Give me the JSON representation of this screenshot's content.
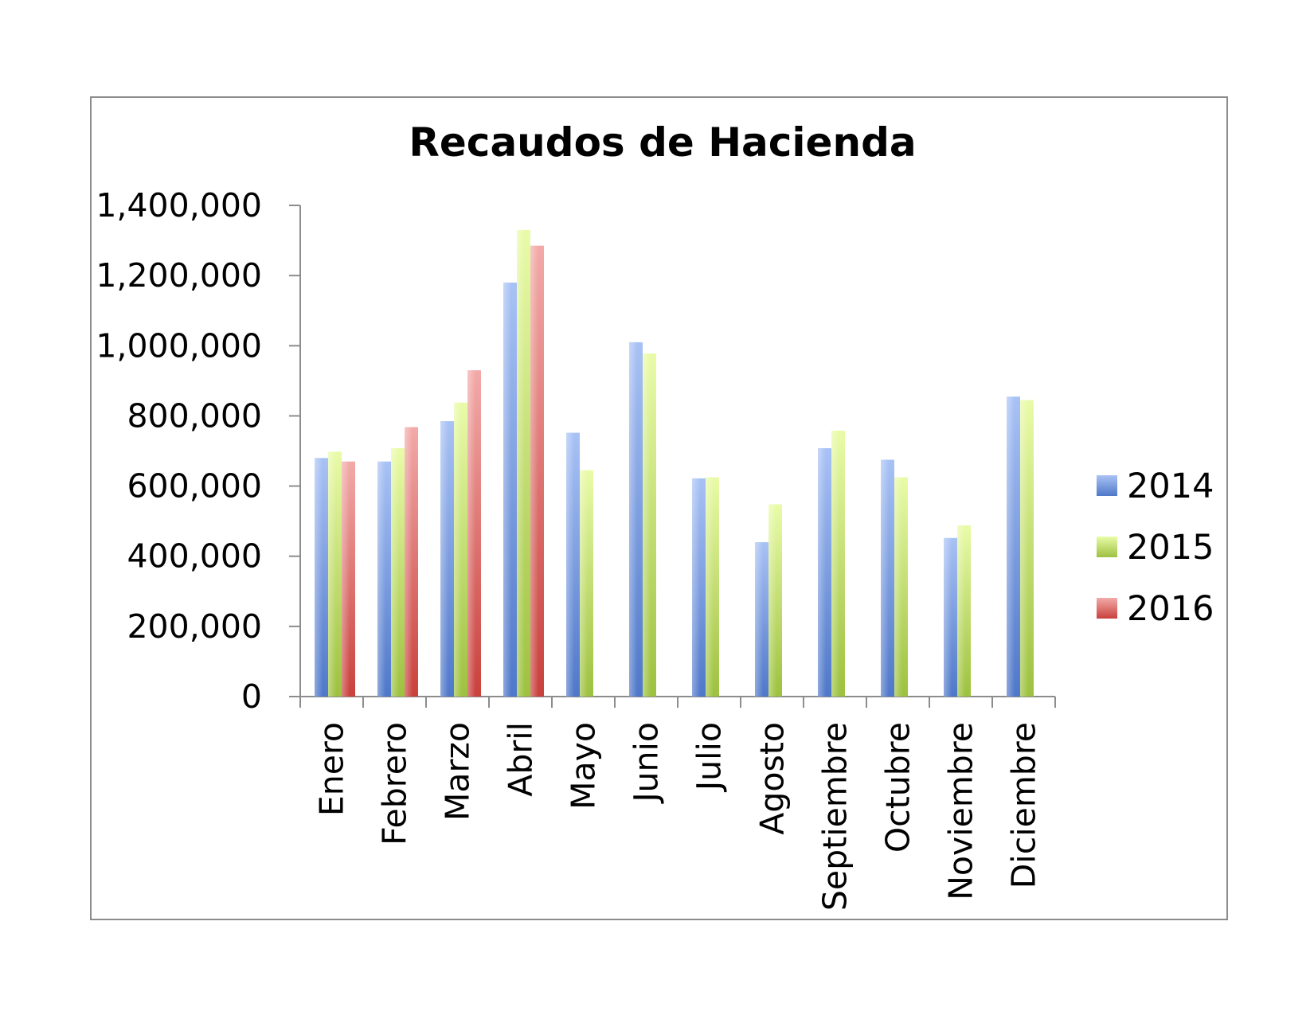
{
  "chart_data": {
    "type": "bar",
    "title": "Recaudos de Hacienda",
    "xlabel": "",
    "ylabel": "",
    "ylim": [
      0,
      1400000
    ],
    "yticks": [
      0,
      200000,
      400000,
      600000,
      800000,
      1000000,
      1200000,
      1400000
    ],
    "ytick_labels": [
      "0",
      "200,000",
      "400,000",
      "600,000",
      "800,000",
      "1,000,000",
      "1,200,000",
      "1,400,000"
    ],
    "grid": false,
    "legend_position": "right",
    "categories": [
      "Enero",
      "Febrero",
      "Marzo",
      "Abril",
      "Mayo",
      "Junio",
      "Julio",
      "Agosto",
      "Septiembre",
      "Octubre",
      "Noviembre",
      "Diciembre"
    ],
    "series": [
      {
        "name": "2014",
        "color_top": "#a9c2f5",
        "color_bottom": "#4f78c9",
        "values": [
          680000,
          670000,
          785000,
          1180000,
          752000,
          1010000,
          622000,
          440000,
          708000,
          675000,
          452000,
          855000
        ]
      },
      {
        "name": "2015",
        "color_top": "#e9fba8",
        "color_bottom": "#9dc13f",
        "values": [
          698000,
          708000,
          838000,
          1330000,
          645000,
          978000,
          625000,
          548000,
          758000,
          625000,
          488000,
          845000
        ]
      },
      {
        "name": "2016",
        "color_top": "#f2aaa8",
        "color_bottom": "#c9413d",
        "values": [
          670000,
          768000,
          930000,
          1285000,
          null,
          null,
          null,
          null,
          null,
          null,
          null,
          null
        ]
      }
    ]
  }
}
